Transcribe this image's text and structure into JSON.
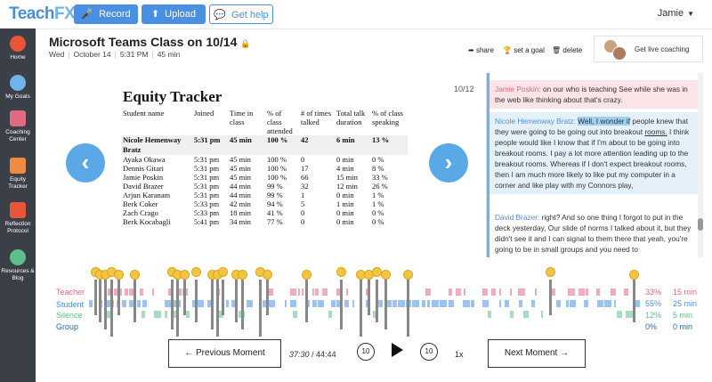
{
  "app": {
    "logo_main": "Teach",
    "logo_accent": "FX"
  },
  "topbar": {
    "record_label": "Record",
    "upload_label": "Upload",
    "help_label": "Get help",
    "user_name": "Jamie"
  },
  "sidebar": {
    "items": [
      {
        "label": "Home",
        "icon": "home-icon",
        "color": "#e8553b"
      },
      {
        "label": "My Goals",
        "icon": "goals-icon",
        "color": "#6fb3e9"
      },
      {
        "label": "Coaching Center",
        "icon": "coaching-icon",
        "color": "#e06a7f"
      },
      {
        "label": "Equity Tracker",
        "icon": "equity-icon",
        "color": "#f08a3c"
      },
      {
        "label": "Reflection Protocol",
        "icon": "reflection-icon",
        "color": "#e8553b"
      },
      {
        "label": "Resources & Blog",
        "icon": "resources-icon",
        "color": "#5cbf8a"
      }
    ]
  },
  "header": {
    "title": "Microsoft Teams Class on 10/14",
    "day": "Wed",
    "date": "October 14",
    "time": "5:31 PM",
    "duration": "45 min",
    "share_label": "share",
    "goal_label": "set a goal",
    "delete_label": "delete",
    "coaching_label": "Get live coaching"
  },
  "slide": {
    "counter": "10/12",
    "title": "Equity Tracker",
    "columns": [
      "Student name",
      "Joined",
      "Time in class",
      "% of class attended",
      "# of times talked",
      "Total talk duration",
      "% of class speaking"
    ],
    "rows": [
      [
        "Nicole Hemenway Bratz",
        "5:31 pm",
        "45 min",
        "100 %",
        "42",
        "6 min",
        "13 %"
      ],
      [
        "Ayaka Okawa",
        "5:31 pm",
        "45 min",
        "100 %",
        "0",
        "0 min",
        "0 %"
      ],
      [
        "Dennis Gitari",
        "5:31 pm",
        "45 min",
        "100 %",
        "17",
        "4 min",
        "8 %"
      ],
      [
        "Jamie Poskin",
        "5:31 pm",
        "45 min",
        "100 %",
        "66",
        "15 min",
        "33 %"
      ],
      [
        "David Brazer",
        "5:31 pm",
        "44 min",
        "99 %",
        "32",
        "12 min",
        "26 %"
      ],
      [
        "Arjun Karanam",
        "5:31 pm",
        "44 min",
        "99 %",
        "1",
        "0 min",
        "1 %"
      ],
      [
        "Berk Coker",
        "5:33 pm",
        "42 min",
        "94 %",
        "5",
        "1 min",
        "1 %"
      ],
      [
        "Zach Crago",
        "5:33 pm",
        "18 min",
        "41 %",
        "0",
        "0 min",
        "0 %"
      ],
      [
        "Berk Kocabagli",
        "5:41 pm",
        "34 min",
        "77 %",
        "0",
        "0 min",
        "0 %"
      ]
    ]
  },
  "transcript": {
    "turns": [
      {
        "speaker": "Jamie Poskin:",
        "text": "on our who is teaching See while she was in the web like thinking about that's crazy."
      },
      {
        "speaker": "Nicole Hemenway Bratz:",
        "highlight": "Well, I wonder if",
        "text_a": " people knew that they were going to be going out into breakout ",
        "under": "rooms.",
        "text_b": " I think people would like I know that if I'm about to be going into breakout rooms. I pay a lot more attention leading up to the breakout rooms. Whereas if I don't expect breakout rooms, then I am much more likely to like put my computer in a corner and like play with my Connors play,"
      },
      {
        "speaker": "David Brazer:",
        "text": "right? And so one thing I forgot to put in the deck yesterday, Our slide of norms I talked about it, but they didn't see it and I can signal to them there that yeah, you're going to be in small groups and you need to"
      }
    ]
  },
  "talk": {
    "teacher": {
      "label": "Teacher",
      "pct": "33%",
      "min": "15 min",
      "color": "#e06a7f"
    },
    "student": {
      "label": "Student",
      "pct": "55%",
      "min": "25 min",
      "color": "#4a90e2"
    },
    "silence": {
      "label": "Silence",
      "pct": "12%",
      "min": "5 min",
      "color": "#5cbf8a"
    },
    "group": {
      "label": "Group",
      "pct": "0%",
      "min": "0 min",
      "color": "#2a6db0"
    }
  },
  "controls": {
    "prev_label": "← Previous Moment",
    "next_label": "Next Moment →",
    "current": "37:30",
    "total": "44:44",
    "skip_back": "10",
    "skip_fwd": "10",
    "speed": "1x"
  }
}
